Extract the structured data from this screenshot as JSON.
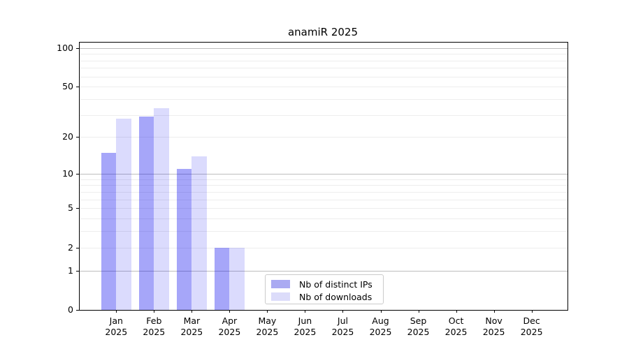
{
  "title": "anamiR 2025",
  "chart_data": {
    "type": "bar",
    "title": "anamiR 2025",
    "categories": [
      "Jan 2025",
      "Feb 2025",
      "Mar 2025",
      "Apr 2025",
      "May 2025",
      "Jun 2025",
      "Jul 2025",
      "Aug 2025",
      "Sep 2025",
      "Oct 2025",
      "Nov 2025",
      "Dec 2025"
    ],
    "series": [
      {
        "name": "Nb of distinct IPs",
        "values": [
          15,
          29,
          11,
          2,
          0,
          0,
          0,
          0,
          0,
          0,
          0,
          0
        ],
        "bar_color": "rgba(0,0,238,0.35)",
        "legend_color": "#aaaaf2"
      },
      {
        "name": "Nb of downloads",
        "values": [
          28,
          34,
          14,
          2,
          0,
          0,
          0,
          0,
          0,
          0,
          0,
          0
        ],
        "bar_color": "rgba(0,0,238,0.14)",
        "legend_color": "#dcdcfa"
      }
    ],
    "y_axis": {
      "scale": "log1p",
      "ticks": [
        100,
        50,
        20,
        10,
        5,
        2,
        1,
        0
      ],
      "max": 110,
      "grid_major": [
        1,
        10,
        100
      ],
      "grid_minor": [
        2,
        3,
        4,
        5,
        6,
        7,
        8,
        9,
        20,
        30,
        40,
        50,
        60,
        70,
        80,
        90
      ]
    },
    "legend": {
      "position": "lower-center",
      "entries": [
        "Nb of distinct IPs",
        "Nb of downloads"
      ]
    },
    "colors": {
      "grid_minor": "#ededed",
      "grid_major": "#bdbdbd",
      "axis": "#000000",
      "background": "#ffffff"
    }
  }
}
